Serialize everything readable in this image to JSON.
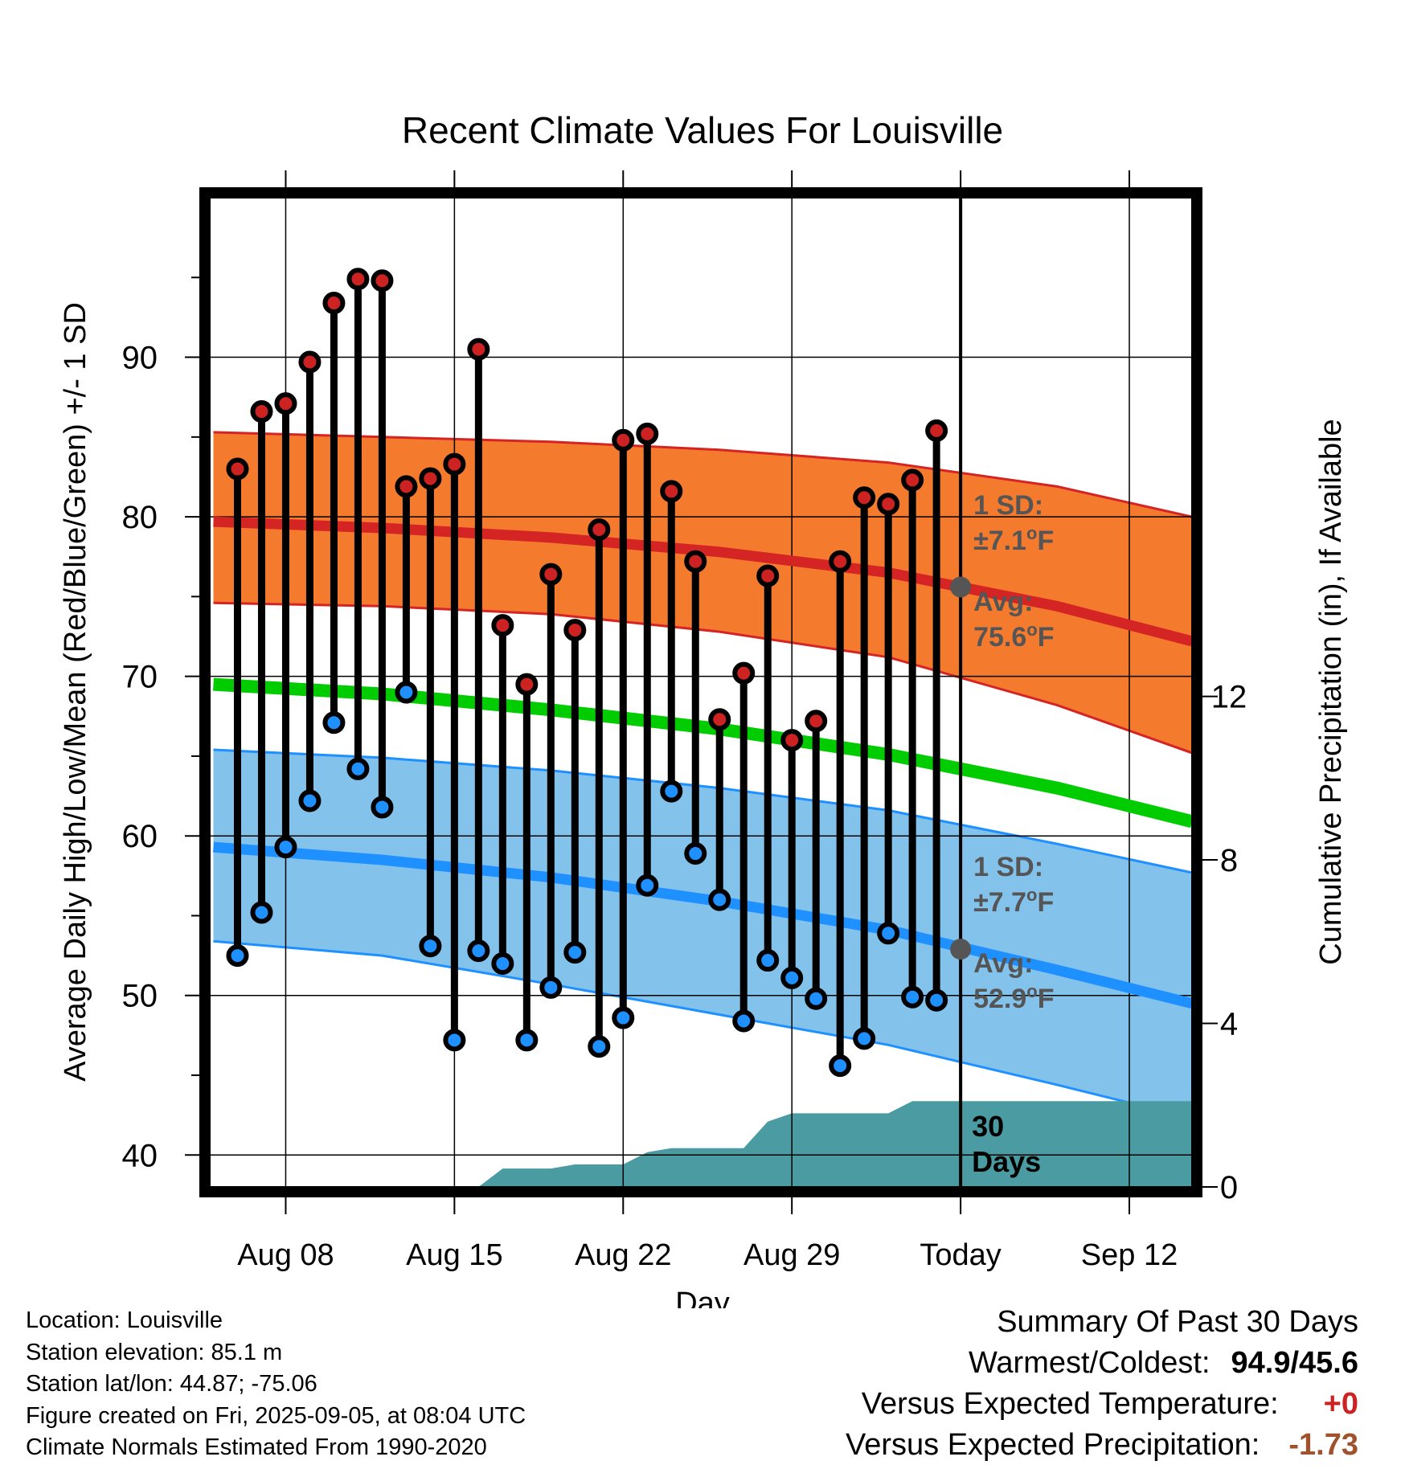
{
  "chart_data": {
    "type": "climate-range",
    "title": "Recent Climate Values For Louisville",
    "xlabel": "Day",
    "ylabel_left": "Average Daily High/Low/Mean (Red/Blue/Green) +/- 1 SD",
    "ylabel_right": "Cumulative Precipitation (in), If Available",
    "x_tick_labels": [
      "Aug 08",
      "Aug 15",
      "Aug 22",
      "Aug 29",
      "Today",
      "Sep 12"
    ],
    "x_tick_days": [
      8,
      15,
      22,
      29,
      36,
      43
    ],
    "xlim_days": [
      4.85,
      45.6
    ],
    "ylim_temp": [
      38,
      100
    ],
    "y_ticks_temp": [
      40,
      50,
      60,
      70,
      80,
      90
    ],
    "ylim_precip": [
      0,
      24.2
    ],
    "y_ticks_precip": [
      0,
      4,
      8,
      12
    ],
    "today_day": 36,
    "grid": true,
    "series": [
      {
        "name": "High",
        "color": "#cc2222",
        "values": [
          83.0,
          86.6,
          87.1,
          89.7,
          93.4,
          94.9,
          94.8,
          81.9,
          82.4,
          83.3,
          90.5,
          73.2,
          69.5,
          76.4,
          72.9,
          79.2,
          84.8,
          85.2,
          81.6,
          77.2,
          67.3,
          70.2,
          76.3,
          66.0,
          67.2,
          77.2,
          81.2,
          80.8,
          82.3,
          85.4
        ]
      },
      {
        "name": "Low",
        "color": "#1e90ff",
        "values": [
          52.5,
          55.2,
          59.3,
          62.2,
          67.1,
          64.2,
          61.8,
          69.0,
          53.1,
          47.2,
          52.8,
          52.0,
          47.2,
          50.5,
          52.7,
          46.8,
          48.6,
          56.9,
          62.8,
          58.9,
          56.0,
          48.4,
          52.2,
          51.1,
          49.8,
          45.6,
          47.3,
          53.9,
          49.9,
          49.7
        ]
      },
      {
        "name": "Cumulative Precipitation",
        "color": "#4a9ba2",
        "values": [
          0,
          0,
          0,
          0,
          0,
          0,
          0,
          0,
          0,
          0,
          0,
          0.45,
          0.45,
          0.45,
          0.55,
          0.55,
          0.55,
          0.85,
          0.95,
          0.95,
          0.95,
          0.95,
          1.6,
          1.8,
          1.8,
          1.8,
          1.8,
          1.8,
          2.1,
          2.1
        ]
      }
    ],
    "first_day": 6,
    "normals": {
      "days": [
        5,
        12,
        19,
        26,
        33,
        40,
        45.6
      ],
      "high_avg": [
        79.7,
        79.3,
        78.7,
        77.8,
        76.5,
        74.4,
        72.2
      ],
      "high_sd_upper": [
        85.3,
        85.0,
        84.7,
        84.2,
        83.4,
        81.9,
        80.0
      ],
      "high_sd_lower": [
        74.6,
        74.4,
        73.9,
        72.8,
        71.2,
        68.2,
        65.2
      ],
      "mean": [
        69.5,
        68.9,
        67.9,
        66.7,
        65.1,
        63.0,
        60.9
      ],
      "low_avg": [
        59.3,
        58.5,
        57.4,
        55.9,
        54.1,
        51.6,
        49.5
      ],
      "low_sd_upper": [
        65.4,
        64.9,
        64.1,
        63.0,
        61.6,
        59.5,
        57.7
      ],
      "low_sd_lower": [
        53.4,
        52.5,
        50.7,
        48.8,
        46.9,
        44.4,
        42.3
      ]
    },
    "annotations": {
      "high_sd_label": "1 SD:",
      "high_sd_value": "±7.1°F",
      "high_avg_label": "Avg:",
      "high_avg_value": "75.6°F",
      "low_sd_label": "1 SD:",
      "low_sd_value": "±7.7°F",
      "low_avg_label": "Avg:",
      "low_avg_value": "52.9°F",
      "days_count": "30",
      "days_word": "Days"
    },
    "colors": {
      "high_band": "#f47a2e",
      "high_line": "#d42424",
      "low_band": "#83c2ea",
      "low_line": "#1e90ff",
      "mean_line": "#00cc00",
      "precip": "#4a9ba2",
      "marker_today": "#555555",
      "annotation": "#555555"
    }
  },
  "info": {
    "location": "Location: Louisville",
    "elevation": "Station elevation: 85.1 m",
    "latlon": "Station lat/lon: 44.87; -75.06",
    "created": "Figure created on Fri, 2025-09-05, at 08:04 UTC",
    "normals": "Climate Normals Estimated From 1990-2020"
  },
  "summary": {
    "title": "Summary Of Past 30 Days",
    "warm_label": "Warmest/Coldest:",
    "warm_value": "94.9/45.6",
    "temp_label": "Versus Expected Temperature:",
    "temp_value": "+0",
    "temp_color": "#cc2222",
    "precip_label": "Versus Expected Precipitation:",
    "precip_value": "-1.73",
    "precip_color": "#a0522d"
  }
}
